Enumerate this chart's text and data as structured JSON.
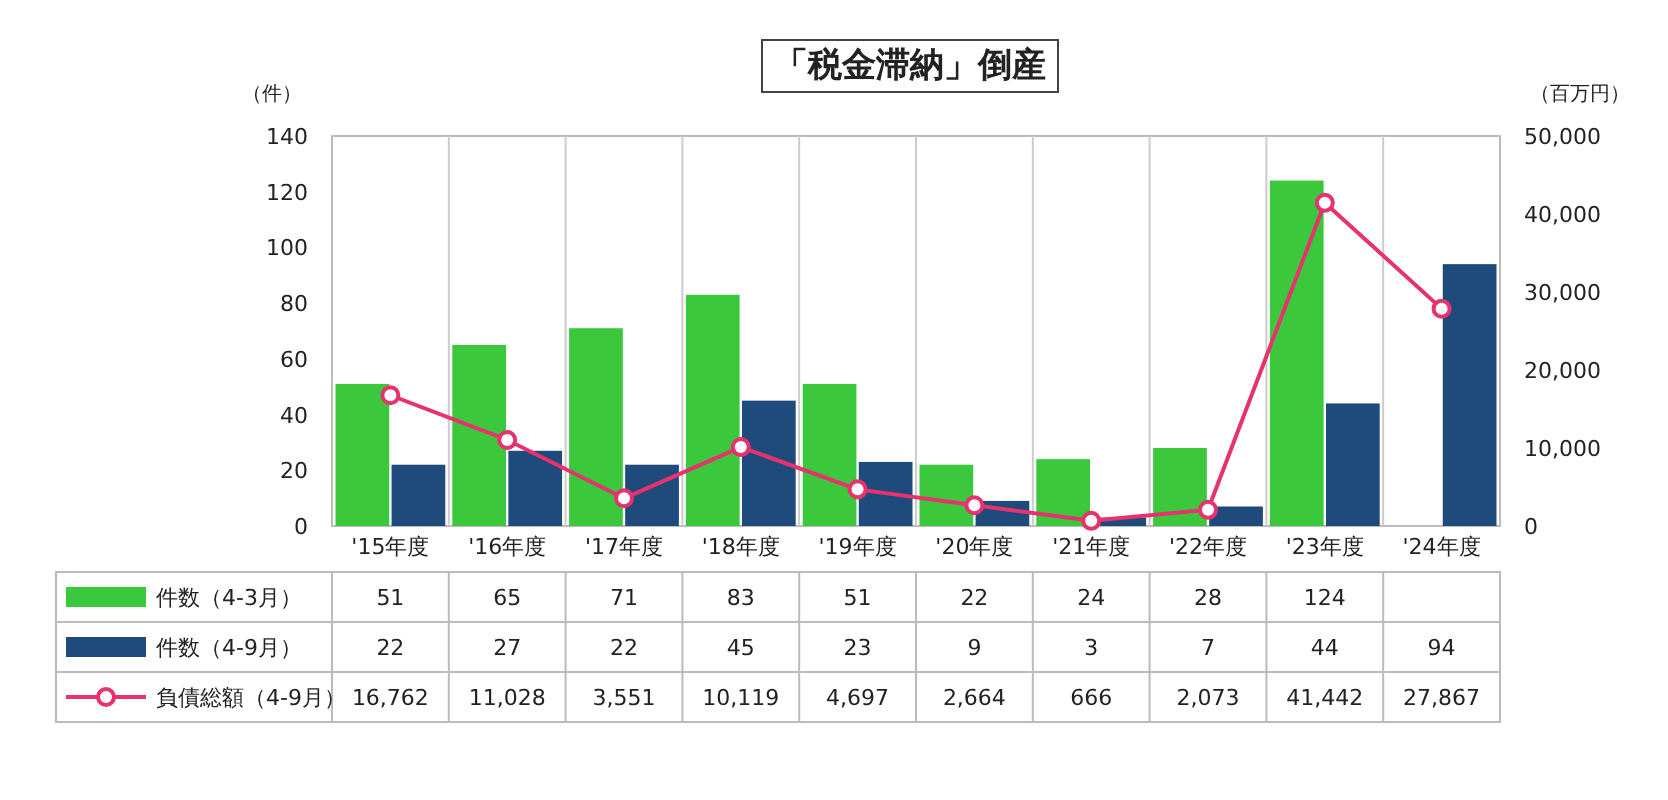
{
  "chart_data": {
    "type": "bar",
    "title": "「税金滞納」倒産",
    "ylabel": "（件）",
    "y2label": "（百万円）",
    "categories": [
      "'15年度",
      "'16年度",
      "'17年度",
      "'18年度",
      "'19年度",
      "'20年度",
      "'21年度",
      "'22年度",
      "'23年度",
      "'24年度"
    ],
    "series": [
      {
        "name": "件数（4-3月）",
        "color": "#3cc83c",
        "values": [
          51,
          65,
          71,
          83,
          51,
          22,
          24,
          28,
          124,
          null
        ],
        "value_labels": [
          "51",
          "65",
          "71",
          "83",
          "51",
          "22",
          "24",
          "28",
          "124",
          null
        ]
      },
      {
        "name": "件数（4-9月）",
        "color": "#1f4a7c",
        "values": [
          22,
          27,
          22,
          45,
          23,
          9,
          3,
          7,
          44,
          94
        ],
        "value_labels": [
          "22",
          "27",
          "22",
          "45",
          "23",
          "9",
          "3",
          "7",
          "44",
          "94"
        ]
      },
      {
        "name": "負債総額（4-9月）",
        "type": "line",
        "axis": "y2",
        "color": "#e6336e",
        "marker": "circle",
        "values": [
          16762,
          11028,
          3551,
          10119,
          4697,
          2664,
          666,
          2073,
          41442,
          27867
        ],
        "value_labels": [
          "16,762",
          "11,028",
          "3,551",
          "10,119",
          "4,697",
          "2,664",
          "666",
          "2,073",
          "41,442",
          "27,867"
        ]
      }
    ],
    "ylim": [
      0,
      140
    ],
    "yticks": [
      0,
      20,
      40,
      60,
      80,
      100,
      120,
      140
    ],
    "y2lim": [
      0,
      50000
    ],
    "y2ticks": [
      {
        "value": 0,
        "label": "0"
      },
      {
        "value": 10000,
        "label": "10,000"
      },
      {
        "value": 20000,
        "label": "20,000"
      },
      {
        "value": 30000,
        "label": "30,000"
      },
      {
        "value": 40000,
        "label": "40,000"
      },
      {
        "value": 50000,
        "label": "50,000"
      }
    ],
    "grid": "x",
    "legend": "bottom"
  }
}
